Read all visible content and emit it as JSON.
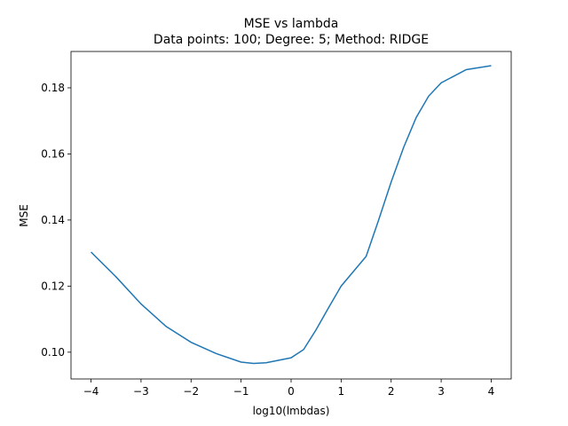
{
  "chart_data": {
    "type": "line",
    "title": "MSE vs lambda",
    "subtitle": "Data points: 100; Degree: 5; Method: RIDGE",
    "x_label": "log10(lmbdas)",
    "y_label": "MSE",
    "series": [
      {
        "color": "#1f77b4",
        "x": [
          -4,
          -3.5,
          -3,
          -2.5,
          -2,
          -1.5,
          -1,
          -0.75,
          -0.5,
          0,
          0.25,
          0.5,
          0.75,
          1,
          1.25,
          1.5,
          1.75,
          2,
          2.25,
          2.5,
          2.75,
          3,
          3.5,
          4
        ],
        "values": [
          0.1303,
          0.1228,
          0.1146,
          0.1078,
          0.103,
          0.0996,
          0.097,
          0.0966,
          0.0968,
          0.0983,
          0.1008,
          0.1068,
          0.1135,
          0.12,
          0.1245,
          0.129,
          0.14,
          0.1515,
          0.162,
          0.171,
          0.1775,
          0.1815,
          0.1855,
          0.1867
        ]
      }
    ],
    "xlim": [
      -4.4,
      4.4
    ],
    "ylim": [
      0.0919,
      0.191
    ],
    "xticks": [
      {
        "value": -4,
        "label": "−4"
      },
      {
        "value": -3,
        "label": "−3"
      },
      {
        "value": -2,
        "label": "−2"
      },
      {
        "value": -1,
        "label": "−1"
      },
      0,
      1,
      2,
      3,
      4
    ],
    "yticks": [
      {
        "value": 0.1,
        "label": "0.10"
      },
      {
        "value": 0.12,
        "label": "0.12"
      },
      {
        "value": 0.14,
        "label": "0.14"
      },
      {
        "value": 0.16,
        "label": "0.16"
      },
      {
        "value": 0.18,
        "label": "0.18"
      }
    ],
    "grid": false
  }
}
